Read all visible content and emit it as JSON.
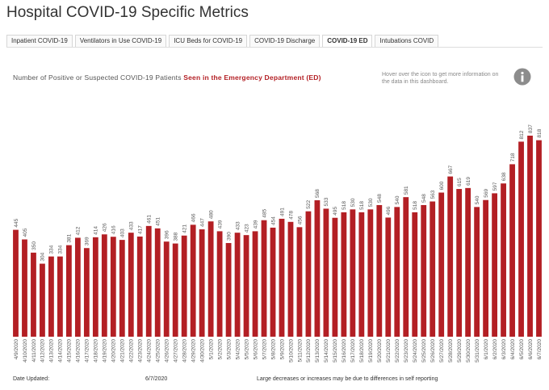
{
  "header": {
    "title": "Hospital COVID-19 Specific Metrics",
    "tabs": [
      "Inpatient COVID-19",
      "Ventilators in Use COVID-19",
      "ICU Beds for COVID-19",
      "COVID-19 Discharge",
      "COVID-19 ED",
      "Intubations COVID"
    ],
    "active_tab": 4
  },
  "info_text": "Hover over the icon to get more information on the data in this dashboard.",
  "chart_data": {
    "type": "bar",
    "title": "Number of Positive or Suspected COVID-19 Patients",
    "title_emphasis": "Seen in the Emergency Department (ED)",
    "color": "#b31f24",
    "categories": [
      "4/9/2020",
      "4/10/2020",
      "4/11/2020",
      "4/12/2020",
      "4/13/2020",
      "4/14/2020",
      "4/15/2020",
      "4/16/2020",
      "4/17/2020",
      "4/18/2020",
      "4/19/2020",
      "4/20/2020",
      "4/21/2020",
      "4/22/2020",
      "4/23/2020",
      "4/24/2020",
      "4/25/2020",
      "4/26/2020",
      "4/27/2020",
      "4/28/2020",
      "4/29/2020",
      "4/30/2020",
      "5/1/2020",
      "5/2/2020",
      "5/3/2020",
      "5/4/2020",
      "5/5/2020",
      "5/6/2020",
      "5/7/2020",
      "5/8/2020",
      "5/9/2020",
      "5/10/2020",
      "5/11/2020",
      "5/12/2020",
      "5/13/2020",
      "5/14/2020",
      "5/15/2020",
      "5/16/2020",
      "5/17/2020",
      "5/18/2020",
      "5/19/2020",
      "5/20/2020",
      "5/21/2020",
      "5/22/2020",
      "5/23/2020",
      "5/24/2020",
      "5/25/2020",
      "5/26/2020",
      "5/27/2020",
      "5/28/2020",
      "5/29/2020",
      "5/30/2020",
      "5/31/2020",
      "6/1/2020",
      "6/2/2020",
      "6/3/2020",
      "6/4/2020",
      "6/5/2020",
      "6/6/2020",
      "6/7/2020"
    ],
    "values": [
      445,
      405,
      350,
      304,
      334,
      334,
      381,
      412,
      369,
      414,
      426,
      416,
      403,
      433,
      417,
      461,
      451,
      396,
      388,
      421,
      466,
      447,
      480,
      439,
      390,
      433,
      423,
      439,
      485,
      454,
      491,
      478,
      456,
      522,
      568,
      533,
      495,
      518,
      530,
      518,
      530,
      548,
      496,
      540,
      581,
      518,
      548,
      563,
      600,
      667,
      615,
      619,
      540,
      569,
      597,
      638,
      718,
      812,
      837,
      818
    ]
  },
  "footer": {
    "date_label": "Date Updated:",
    "date": "6/7/2020",
    "note": "Large decreases or increases may be due to differences in self reporting"
  }
}
